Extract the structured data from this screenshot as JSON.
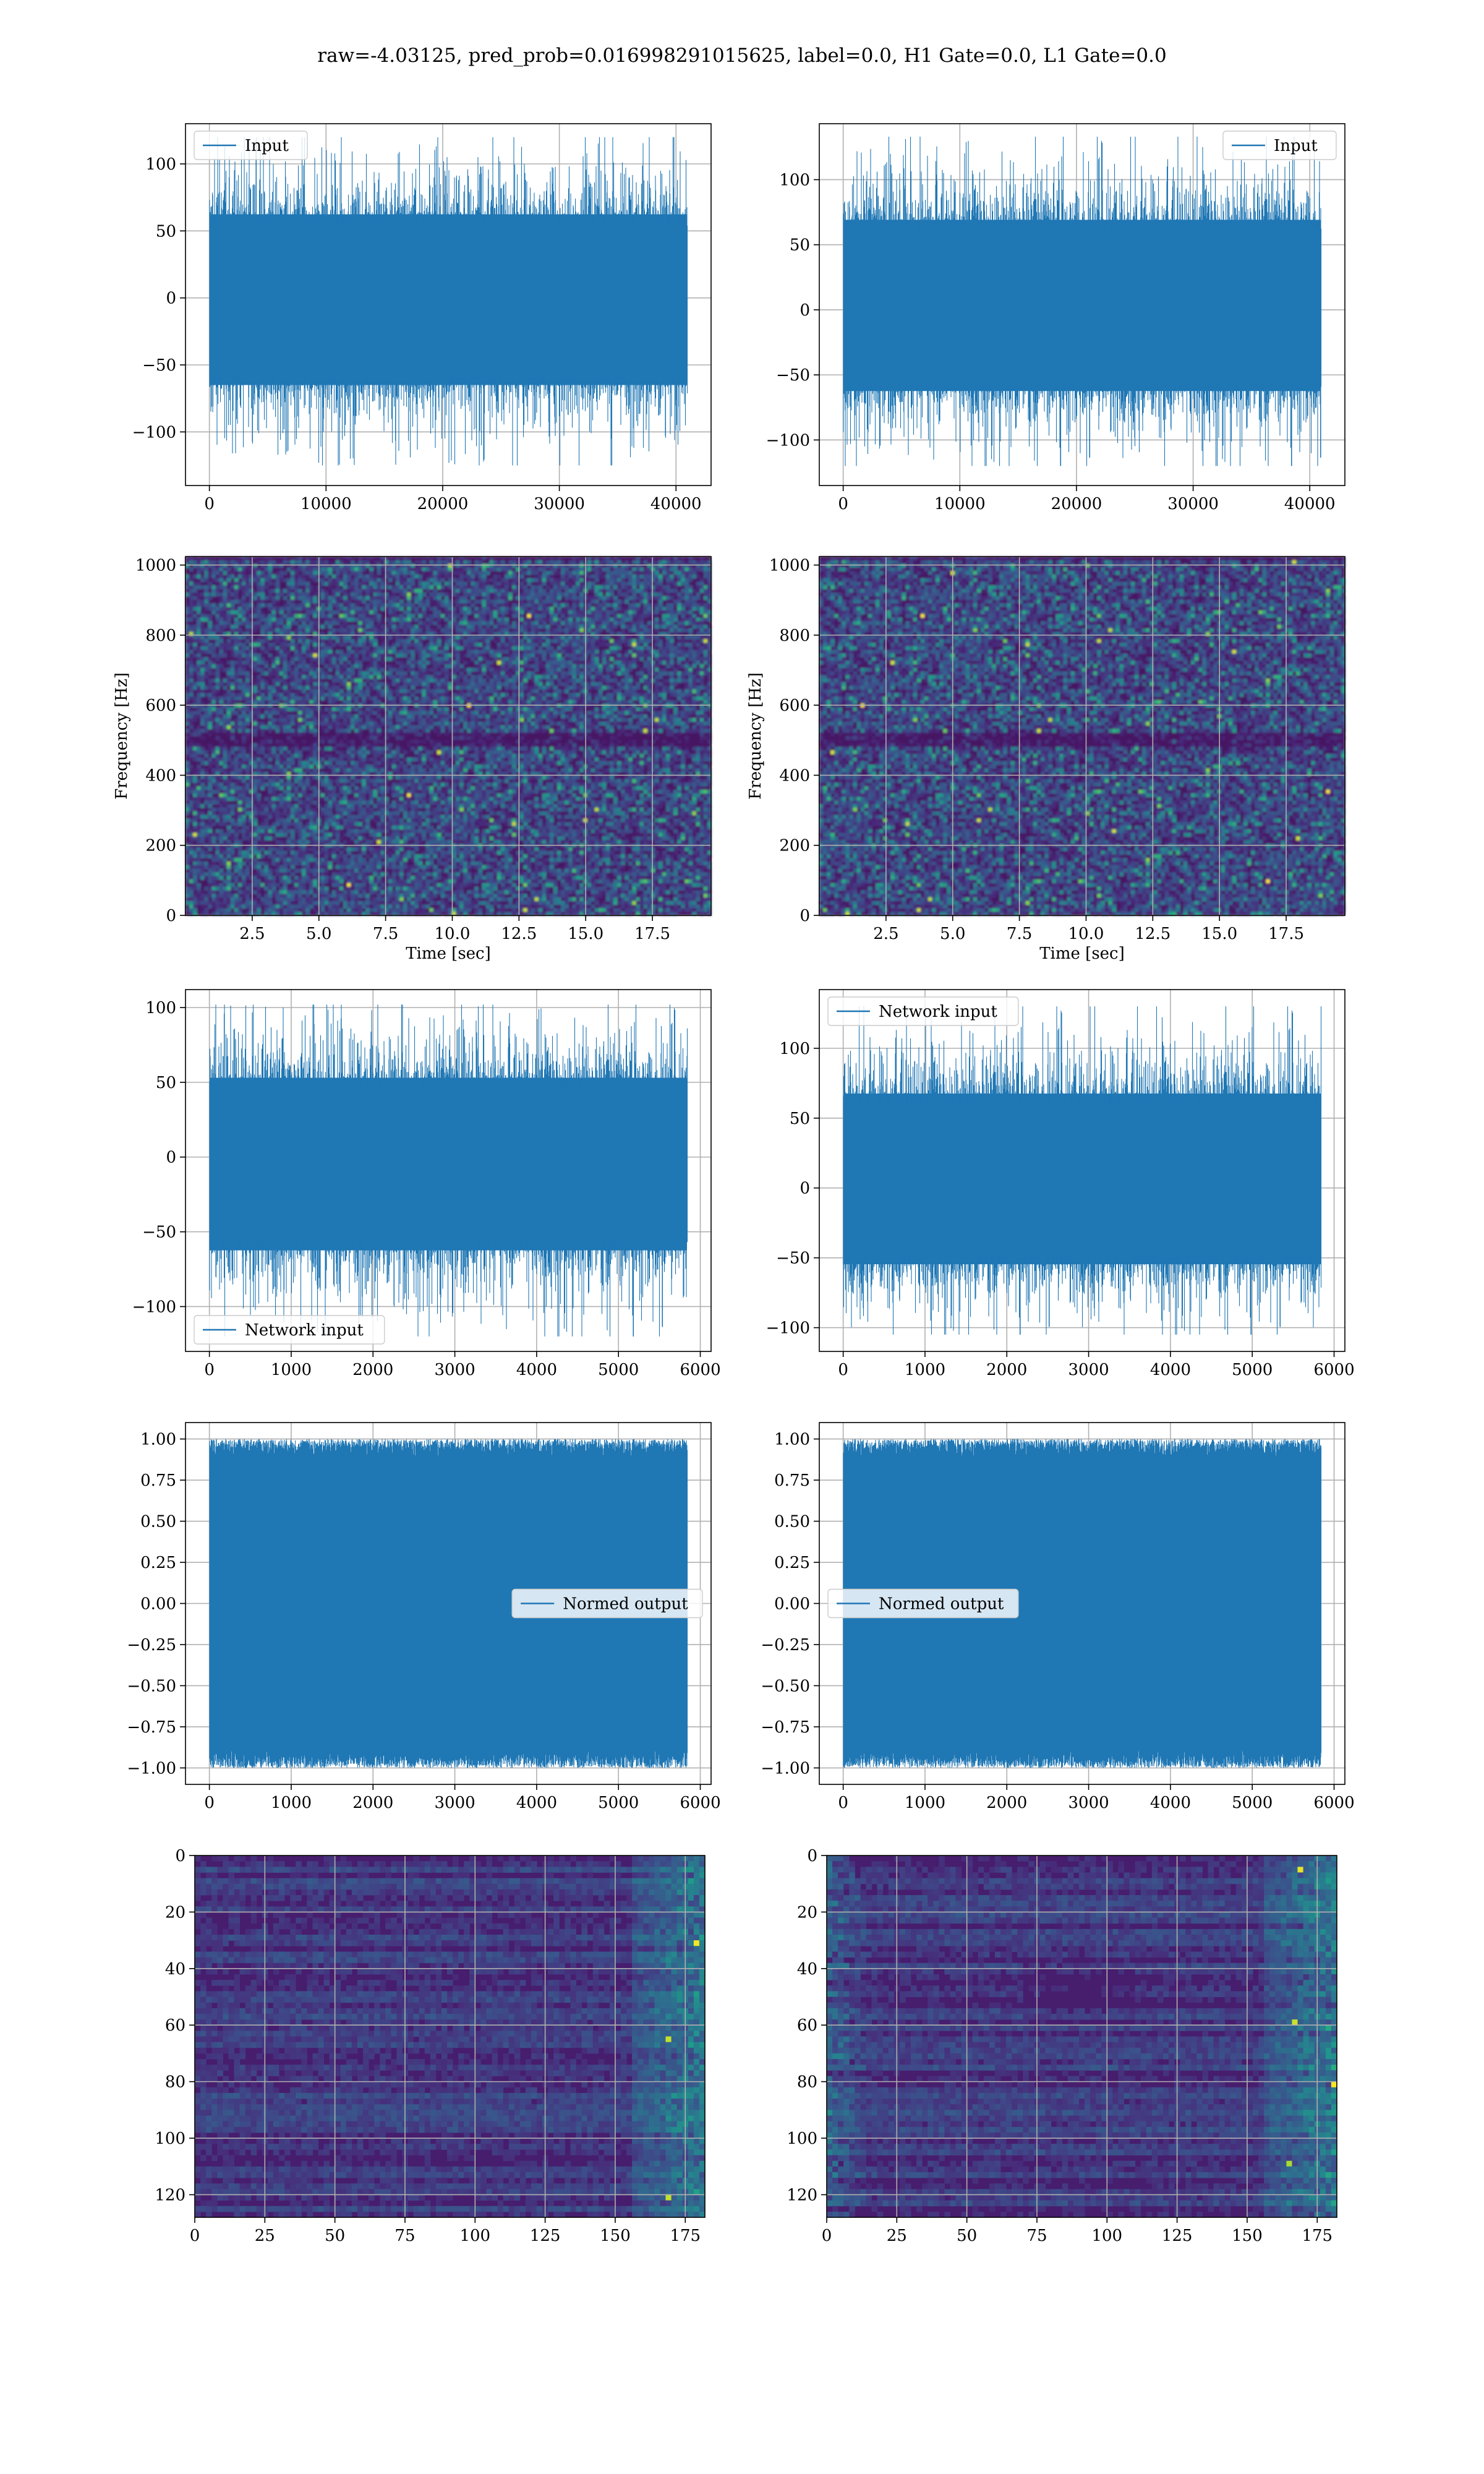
{
  "figure": {
    "suptitle": "raw=-4.03125, pred_prob=0.016998291015625, label=0.0, H1 Gate=0.0, L1 Gate=0.0"
  },
  "colors": {
    "series": "#1f77b4",
    "grid": "#b0b0b0",
    "viridis_low": "#440154",
    "viridis_high": "#fde725"
  },
  "chart_data": [
    {
      "id": "input-left",
      "type": "line",
      "xlabel": "",
      "ylabel": "",
      "series": [
        {
          "name": "Input",
          "n": 40960,
          "envelope": [
            -125,
            120
          ]
        }
      ],
      "xlim": [
        -2048,
        43008
      ],
      "ylim": [
        -140,
        130
      ],
      "xticks": [
        0,
        10000,
        20000,
        30000,
        40000
      ],
      "yticks": [
        -100,
        -50,
        0,
        50,
        100
      ],
      "legend": "upper left",
      "grid": true
    },
    {
      "id": "input-right",
      "type": "line",
      "xlabel": "",
      "ylabel": "",
      "series": [
        {
          "name": "Input",
          "n": 40960,
          "envelope": [
            -120,
            133
          ]
        }
      ],
      "xlim": [
        -2048,
        43008
      ],
      "ylim": [
        -135,
        143
      ],
      "xticks": [
        0,
        10000,
        20000,
        30000,
        40000
      ],
      "yticks": [
        -100,
        -50,
        0,
        50,
        100
      ],
      "legend": "upper right",
      "grid": true
    },
    {
      "id": "spectrogram-left",
      "type": "heatmap",
      "xlabel": "Time [sec]",
      "ylabel": "Frequency [Hz]",
      "xlim": [
        0,
        19.7
      ],
      "ylim": [
        0,
        1024
      ],
      "xticks": [
        2.5,
        5.0,
        7.5,
        10.0,
        12.5,
        15.0,
        17.5
      ],
      "yticks": [
        0,
        200,
        400,
        600,
        800,
        1000
      ],
      "colormap": "viridis",
      "grid": true
    },
    {
      "id": "spectrogram-right",
      "type": "heatmap",
      "xlabel": "Time [sec]",
      "ylabel": "Frequency [Hz]",
      "xlim": [
        0,
        19.7
      ],
      "ylim": [
        0,
        1024
      ],
      "xticks": [
        2.5,
        5.0,
        7.5,
        10.0,
        12.5,
        15.0,
        17.5
      ],
      "yticks": [
        0,
        200,
        400,
        600,
        800,
        1000
      ],
      "colormap": "viridis",
      "grid": true
    },
    {
      "id": "network-left",
      "type": "line",
      "xlabel": "",
      "ylabel": "",
      "series": [
        {
          "name": "Network input",
          "n": 5840,
          "envelope": [
            -120,
            102
          ]
        }
      ],
      "xlim": [
        -292,
        6132
      ],
      "ylim": [
        -130,
        112
      ],
      "xticks": [
        0,
        1000,
        2000,
        3000,
        4000,
        5000,
        6000
      ],
      "yticks": [
        -100,
        -50,
        0,
        50,
        100
      ],
      "legend": "lower left",
      "grid": true
    },
    {
      "id": "network-right",
      "type": "line",
      "xlabel": "",
      "ylabel": "",
      "series": [
        {
          "name": "Network input",
          "n": 5840,
          "envelope": [
            -105,
            130
          ]
        }
      ],
      "xlim": [
        -292,
        6132
      ],
      "ylim": [
        -117,
        142
      ],
      "xticks": [
        0,
        1000,
        2000,
        3000,
        4000,
        5000,
        6000
      ],
      "yticks": [
        -100,
        -50,
        0,
        50,
        100
      ],
      "legend": "upper left",
      "grid": true
    },
    {
      "id": "normed-left",
      "type": "line",
      "xlabel": "",
      "ylabel": "",
      "series": [
        {
          "name": "Normed output",
          "n": 5840,
          "envelope": [
            -1.0,
            1.0
          ]
        }
      ],
      "xlim": [
        -292,
        6132
      ],
      "ylim": [
        -1.1,
        1.1
      ],
      "xticks": [
        0,
        1000,
        2000,
        3000,
        4000,
        5000,
        6000
      ],
      "yticks": [
        -1.0,
        -0.75,
        -0.5,
        -0.25,
        0.0,
        0.25,
        0.5,
        0.75,
        1.0
      ],
      "legend": "center right",
      "grid": true
    },
    {
      "id": "normed-right",
      "type": "line",
      "xlabel": "",
      "ylabel": "",
      "series": [
        {
          "name": "Normed output",
          "n": 5840,
          "envelope": [
            -1.0,
            1.0
          ]
        }
      ],
      "xlim": [
        -292,
        6132
      ],
      "ylim": [
        -1.1,
        1.1
      ],
      "xticks": [
        0,
        1000,
        2000,
        3000,
        4000,
        5000,
        6000
      ],
      "yticks": [
        -1.0,
        -0.75,
        -0.5,
        -0.25,
        0.0,
        0.25,
        0.5,
        0.75,
        1.0
      ],
      "legend": "center left",
      "grid": true
    },
    {
      "id": "features-left",
      "type": "heatmap",
      "xlabel": "",
      "ylabel": "",
      "xlim": [
        0,
        182
      ],
      "ylim": [
        128,
        0
      ],
      "xticks": [
        0,
        25,
        50,
        75,
        100,
        125,
        150,
        175
      ],
      "yticks": [
        0,
        20,
        40,
        60,
        80,
        100,
        120
      ],
      "colormap": "viridis",
      "grid": true
    },
    {
      "id": "features-right",
      "type": "heatmap",
      "xlabel": "",
      "ylabel": "",
      "xlim": [
        0,
        182
      ],
      "ylim": [
        128,
        0
      ],
      "xticks": [
        0,
        25,
        50,
        75,
        100,
        125,
        150,
        175
      ],
      "yticks": [
        0,
        20,
        40,
        60,
        80,
        100,
        120
      ],
      "colormap": "viridis",
      "grid": true
    }
  ]
}
